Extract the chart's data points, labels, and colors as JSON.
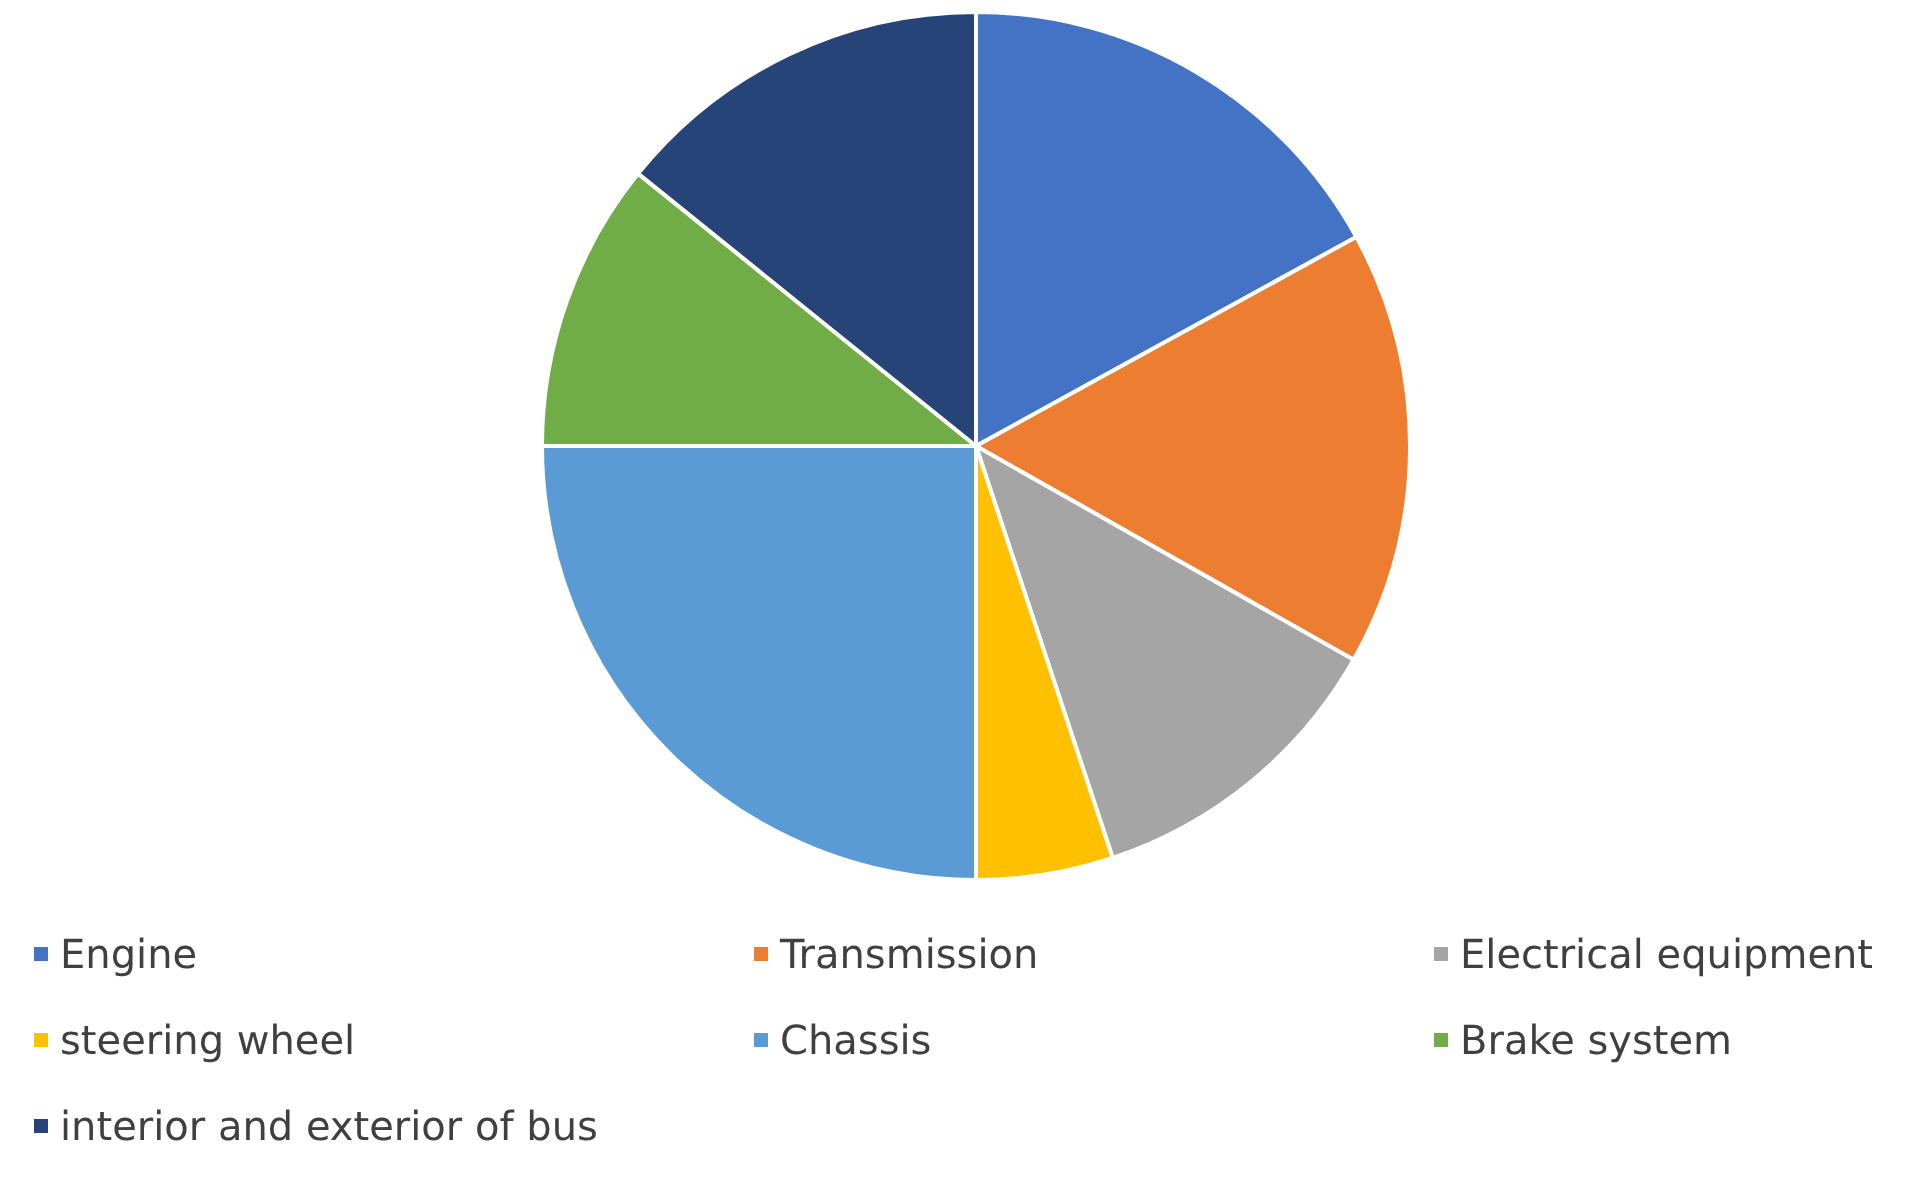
{
  "chart_data": {
    "type": "pie",
    "categories": [
      "Engine",
      "Transmission",
      "Electrical equipment",
      "steering wheel",
      "Chassis",
      "Brake system",
      "interior and exterior of bus"
    ],
    "values": [
      17,
      16.2,
      11.7,
      5.1,
      25,
      10.8,
      14.2
    ],
    "colors": [
      "#4472c4",
      "#ed7d31",
      "#a5a5a5",
      "#ffc000",
      "#5b9bd5",
      "#70ad47",
      "#264478"
    ],
    "legend": "bottom"
  }
}
